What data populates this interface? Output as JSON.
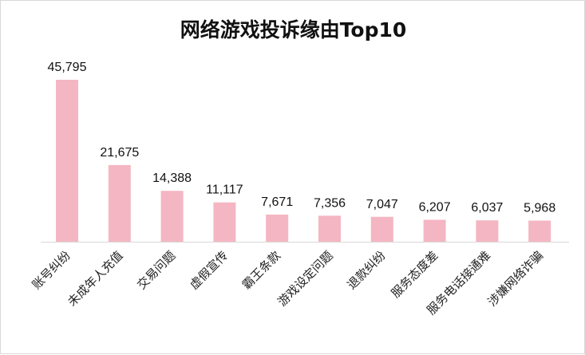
{
  "chart_data": {
    "type": "bar",
    "title": "网络游戏投诉缘由Top10",
    "categories": [
      "账号纠纷",
      "未成年人充值",
      "交易问题",
      "虚假宣传",
      "霸王条款",
      "游戏设定问题",
      "退款纠纷",
      "服务态度差",
      "服务电话接通难",
      "涉嫌网络诈骗"
    ],
    "values": [
      45795,
      21675,
      14388,
      11117,
      7671,
      7356,
      7047,
      6207,
      6037,
      5968
    ],
    "value_labels": [
      "45,795",
      "21,675",
      "14,388",
      "11,117",
      "7,671",
      "7,356",
      "7,047",
      "6,207",
      "6,037",
      "5,968"
    ],
    "xlabel": "",
    "ylabel": "",
    "ylim": [
      0,
      45795
    ],
    "grid": false,
    "legend": "none",
    "bar_color": "#f4b6c2",
    "axis_color": "#d9d9d9"
  }
}
